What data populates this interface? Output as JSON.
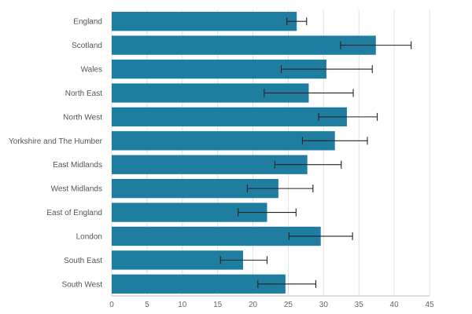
{
  "chart_data": {
    "type": "bar",
    "orientation": "horizontal",
    "title": "",
    "xlabel": "",
    "ylabel": "",
    "xlim": [
      0,
      45
    ],
    "x_ticks": [
      0,
      5,
      10,
      15,
      20,
      25,
      30,
      35,
      40,
      45
    ],
    "grid": true,
    "bar_color": "#1f7ea0",
    "error_bar_color": "#222222",
    "categories": [
      "England",
      "Scotland",
      "Wales",
      "North East",
      "North West",
      "Yorkshire and The Humber",
      "East Midlands",
      "West Midlands",
      "East of England",
      "London",
      "South East",
      "South West"
    ],
    "values": [
      26.2,
      37.4,
      30.4,
      27.9,
      33.3,
      31.6,
      27.7,
      23.6,
      22.0,
      29.6,
      18.6,
      24.6
    ],
    "error_low": [
      24.8,
      32.4,
      24.0,
      21.6,
      29.3,
      27.0,
      23.1,
      19.2,
      17.9,
      25.1,
      15.4,
      20.7
    ],
    "error_high": [
      27.6,
      42.4,
      36.9,
      34.2,
      37.6,
      36.2,
      32.5,
      28.5,
      26.1,
      34.1,
      22.0,
      28.9
    ]
  }
}
